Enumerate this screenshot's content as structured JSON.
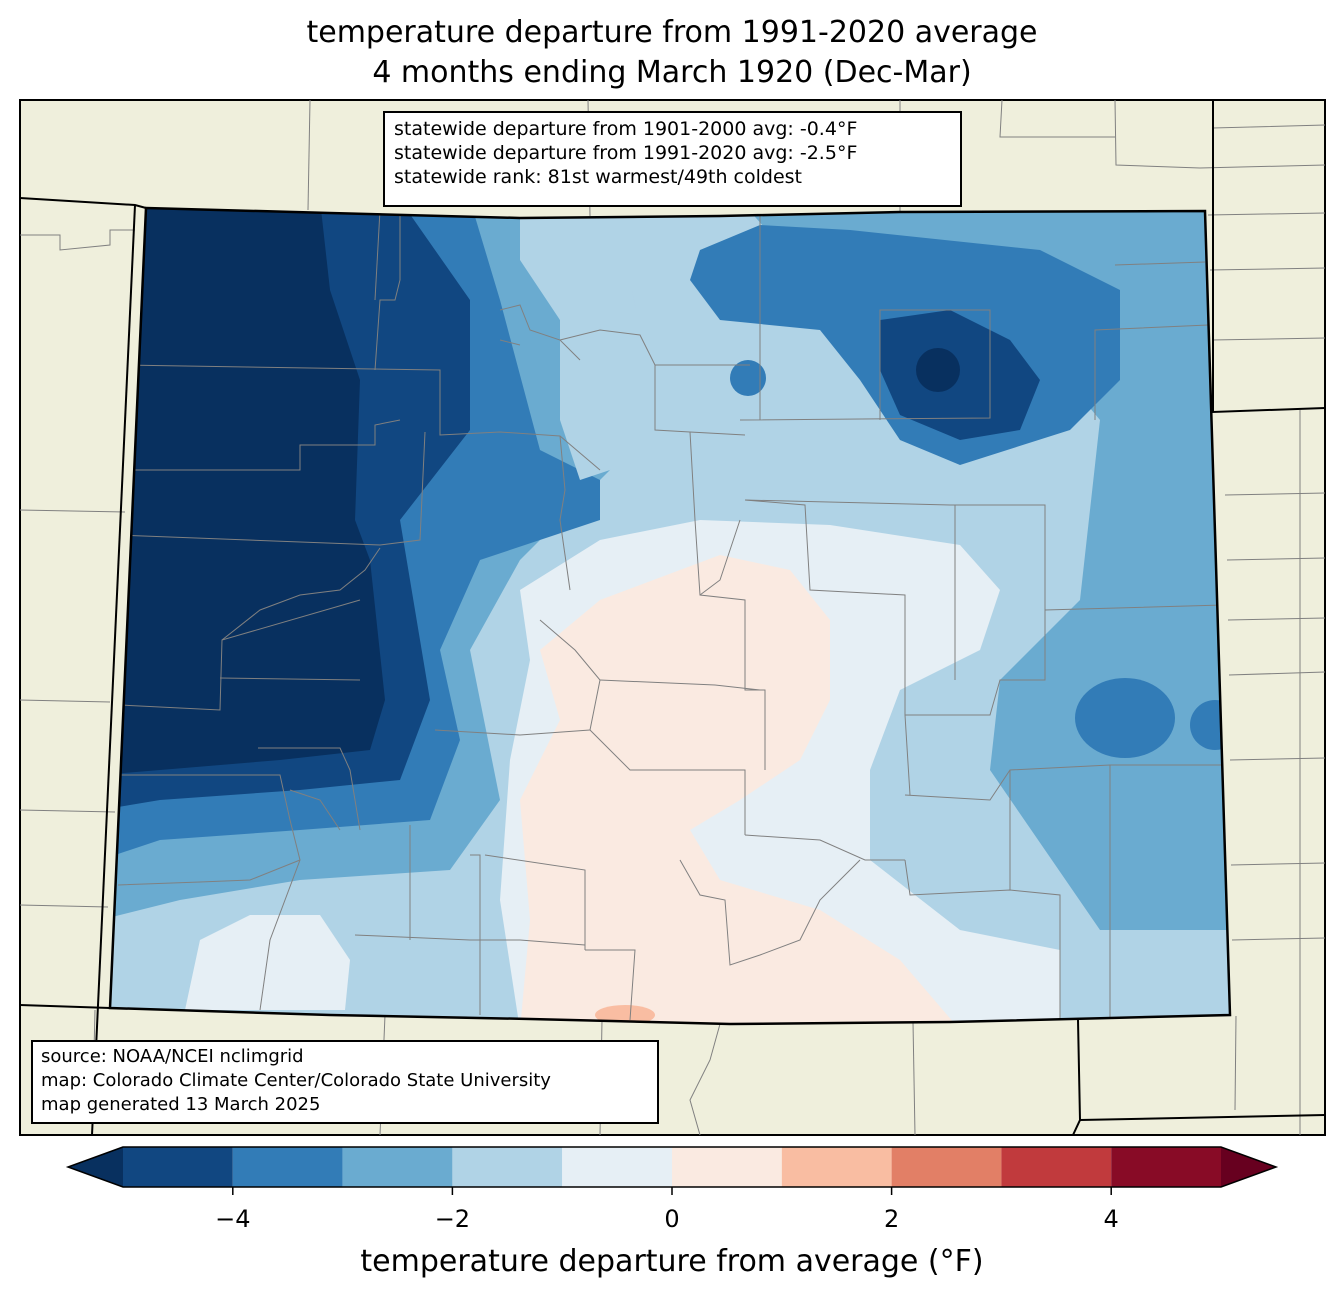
{
  "title_line1": "temperature departure from 1991-2020 average",
  "title_line2": "4 months ending March 1920 (Dec-Mar)",
  "stats": {
    "line1": "statewide departure from 1901-2000 avg: -0.4°F",
    "line2": "statewide departure from 1991-2020 avg: -2.5°F",
    "line3": "statewide rank: 81st warmest/49th coldest"
  },
  "source": {
    "line1": "source: NOAA/NCEI nclimgrid",
    "line2": "map: Colorado Climate Center/Colorado State University",
    "line3": "map generated 13 March 2025"
  },
  "colorbar": {
    "title": "temperature departure from average (°F)",
    "tick_labels": [
      "−4",
      "−2",
      "0",
      "2",
      "4"
    ],
    "tick_values": [
      -4,
      -2,
      0,
      2,
      4
    ],
    "range": [
      -5,
      5
    ],
    "bins": [
      {
        "from": -5,
        "to": -4,
        "color": "#114781"
      },
      {
        "from": -4,
        "to": -3,
        "color": "#327cb7"
      },
      {
        "from": -3,
        "to": -2,
        "color": "#6aabd0"
      },
      {
        "from": -2,
        "to": -1,
        "color": "#b0d3e6"
      },
      {
        "from": -1,
        "to": 0,
        "color": "#e6eff5"
      },
      {
        "from": 0,
        "to": 1,
        "color": "#faeae1"
      },
      {
        "from": 1,
        "to": 2,
        "color": "#f9bda2"
      },
      {
        "from": 2,
        "to": 3,
        "color": "#e27f66"
      },
      {
        "from": 3,
        "to": 4,
        "color": "#c13a3d"
      },
      {
        "from": 4,
        "to": 5,
        "color": "#880b26"
      }
    ],
    "under_color": "#08305f",
    "over_color": "#67001f"
  },
  "colors": {
    "background_land": "#efefdc",
    "state_border": "#000000",
    "county_border": "#808080"
  }
}
